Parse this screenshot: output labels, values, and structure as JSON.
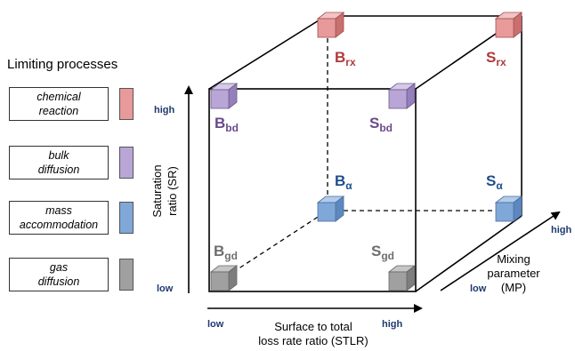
{
  "legend": {
    "title": "Limiting processes",
    "items": [
      {
        "line1": "chemical",
        "line2": "reaction",
        "color": "#e89a9a"
      },
      {
        "line1": "bulk",
        "line2": "diffusion",
        "color": "#b9a6d6"
      },
      {
        "line1": "mass",
        "line2": "accommodation",
        "color": "#7fa7d8"
      },
      {
        "line1": "gas",
        "line2": "diffusion",
        "color": "#a0a0a0"
      }
    ]
  },
  "axes": {
    "y": {
      "title_line1": "Saturation",
      "title_line2": "ratio (SR)",
      "high": "high",
      "low": "low"
    },
    "x": {
      "title_line1": "Surface to total",
      "title_line2": "loss rate ratio (STLR)",
      "low": "low",
      "high": "high"
    },
    "z": {
      "title_line1": "Mixing",
      "title_line2": "parameter",
      "title_line3": "(MP)",
      "low": "low",
      "high": "high"
    }
  },
  "corners": {
    "b_rx": {
      "base": "B",
      "sub": "rx",
      "color": "#b03a3a"
    },
    "s_rx": {
      "base": "S",
      "sub": "rx",
      "color": "#b03a3a"
    },
    "b_bd": {
      "base": "B",
      "sub": "bd",
      "color": "#6a4a8c"
    },
    "s_bd": {
      "base": "S",
      "sub": "bd",
      "color": "#6a4a8c"
    },
    "b_a": {
      "base": "B",
      "sub": "α",
      "color": "#1f4e8c"
    },
    "s_a": {
      "base": "S",
      "sub": "α",
      "color": "#1f4e8c"
    },
    "b_gd": {
      "base": "B",
      "sub": "gd",
      "color": "#6e6e6e"
    },
    "s_gd": {
      "base": "S",
      "sub": "gd",
      "color": "#6e6e6e"
    }
  },
  "colors": {
    "axis_label": "#1f3a6e",
    "red_front": "#e89a9a",
    "red_top": "#f2c3c3",
    "red_side": "#c96f6f",
    "purple_front": "#b9a6d6",
    "purple_top": "#d5c9e8",
    "purple_side": "#9680bb",
    "blue_front": "#7fa7d8",
    "blue_top": "#b2cbea",
    "blue_side": "#5d88bf",
    "gray_front": "#a0a0a0",
    "gray_top": "#c6c6c6",
    "gray_side": "#7e7e7e"
  }
}
